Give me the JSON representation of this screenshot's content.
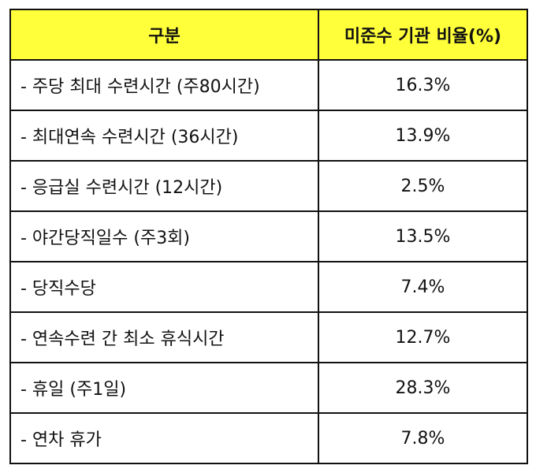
{
  "table": {
    "header": {
      "col1": "구분",
      "col2": "미준수 기관 비율(%)"
    },
    "rows": [
      {
        "label": "- 주당 최대 수련시간 (주80시간)",
        "value": "16.3%"
      },
      {
        "label": "- 최대연속 수련시간 (36시간)",
        "value": "13.9%"
      },
      {
        "label": "- 응급실 수련시간 (12시간)",
        "value": "2.5%"
      },
      {
        "label": "- 야간당직일수 (주3회)",
        "value": "13.5%"
      },
      {
        "label": "- 당직수당",
        "value": "7.4%"
      },
      {
        "label": "- 연속수련 간 최소 휴식시간",
        "value": "12.7%"
      },
      {
        "label": "- 휴일 (주1일)",
        "value": "28.3%"
      },
      {
        "label": "- 연차 휴가",
        "value": "7.8%"
      }
    ]
  },
  "colors": {
    "header_bg": "#ffff3a",
    "border": "#111111",
    "text": "#111111"
  }
}
